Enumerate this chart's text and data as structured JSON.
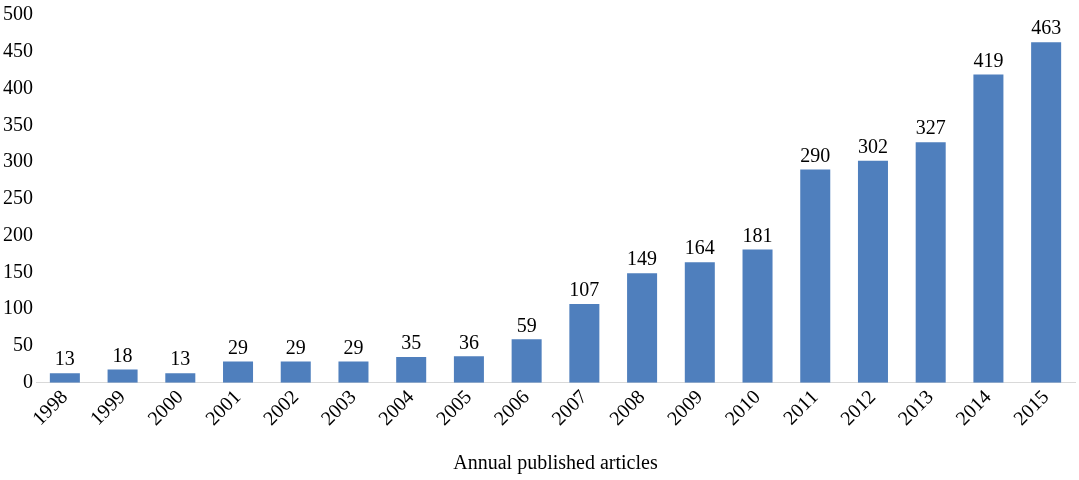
{
  "chart_data": {
    "type": "bar",
    "xlabel": "Annual published articles",
    "categories": [
      "1998",
      "1999",
      "2000",
      "2001",
      "2002",
      "2003",
      "2004",
      "2005",
      "2006",
      "2007",
      "2008",
      "2009",
      "2010",
      "2011",
      "2012",
      "2013",
      "2014",
      "2015"
    ],
    "values": [
      13,
      18,
      13,
      29,
      29,
      29,
      35,
      36,
      59,
      107,
      149,
      164,
      181,
      290,
      302,
      327,
      419,
      463
    ],
    "color": "#4f7fbd",
    "ylim": [
      0,
      500
    ],
    "yticks": [
      0,
      50,
      100,
      150,
      200,
      250,
      300,
      350,
      400,
      450,
      500
    ],
    "grid": false,
    "legend": false,
    "data_labels": true
  }
}
